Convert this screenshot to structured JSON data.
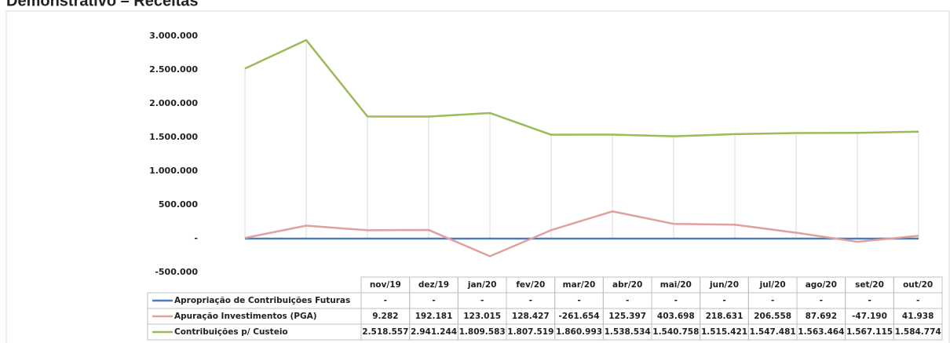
{
  "chart_data": {
    "type": "line",
    "title": "Demonstrativo – Receitas",
    "categories": [
      "nov/19",
      "dez/19",
      "jan/20",
      "fev/20",
      "mar/20",
      "abr/20",
      "mai/20",
      "jun/20",
      "jul/20",
      "ago/20",
      "set/20",
      "out/20"
    ],
    "series": [
      {
        "name": "Apropriação de Contribuições Futuras",
        "color": "#4a7ebb",
        "values": [
          0,
          0,
          0,
          0,
          0,
          0,
          0,
          0,
          0,
          0,
          0,
          0
        ],
        "value_labels": [
          "-",
          "-",
          "-",
          "-",
          "-",
          "-",
          "-",
          "-",
          "-",
          "-",
          "-",
          "-"
        ]
      },
      {
        "name": "Apuração Investimentos (PGA)",
        "color": "#e0a09e",
        "values": [
          9282,
          192181,
          123015,
          128427,
          -261654,
          125397,
          403698,
          218631,
          206558,
          87692,
          -47190,
          41938
        ],
        "value_labels": [
          "9.282",
          "192.181",
          "123.015",
          "128.427",
          "-261.654",
          "125.397",
          "403.698",
          "218.631",
          "206.558",
          "87.692",
          "-47.190",
          "41.938"
        ]
      },
      {
        "name": "Contribuições p/ Custeio",
        "color": "#9bbb59",
        "values": [
          2518557,
          2941244,
          1809583,
          1807519,
          1860993,
          1538534,
          1540758,
          1515421,
          1547481,
          1563464,
          1567115,
          1584774
        ],
        "value_labels": [
          "2.518.557",
          "2.941.244",
          "1.809.583",
          "1.807.519",
          "1.860.993",
          "1.538.534",
          "1.540.758",
          "1.515.421",
          "1.547.481",
          "1.563.464",
          "1.567.115",
          "1.584.774"
        ]
      }
    ],
    "ylim": [
      -500000,
      3000000
    ],
    "yticks": [
      {
        "value": -500000,
        "label": "-500.000"
      },
      {
        "value": 0,
        "label": "-"
      },
      {
        "value": 500000,
        "label": "500.000"
      },
      {
        "value": 1000000,
        "label": "1.000.000"
      },
      {
        "value": 1500000,
        "label": "1.500.000"
      },
      {
        "value": 2000000,
        "label": "2.000.000"
      },
      {
        "value": 2500000,
        "label": "2.500.000"
      },
      {
        "value": 3000000,
        "label": "3.000.000"
      }
    ],
    "grid": true
  }
}
